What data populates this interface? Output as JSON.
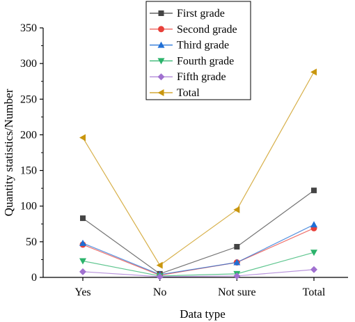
{
  "chart_data": {
    "type": "line",
    "xlabel": "Data type",
    "ylabel": "Quantity statistics/Number",
    "categories": [
      "Yes",
      "No",
      "Not sure",
      "Total"
    ],
    "ylim": [
      0,
      350
    ],
    "yticks": [
      0,
      50,
      100,
      150,
      200,
      250,
      300,
      350
    ],
    "grid": false,
    "legend_position": "top-center",
    "series": [
      {
        "name": "First grade",
        "color": "#444444",
        "marker": "square",
        "values": [
          83,
          5,
          43,
          122
        ]
      },
      {
        "name": "Second grade",
        "color": "#e8403a",
        "marker": "circle",
        "values": [
          46,
          3,
          21,
          69
        ]
      },
      {
        "name": "Third grade",
        "color": "#1f6fd6",
        "marker": "triangle-up",
        "values": [
          48,
          4,
          21,
          74
        ]
      },
      {
        "name": "Fourth grade",
        "color": "#2bb36b",
        "marker": "triangle-down",
        "values": [
          23,
          2,
          5,
          35
        ]
      },
      {
        "name": "Fifth grade",
        "color": "#a070d0",
        "marker": "diamond",
        "values": [
          8,
          1,
          2,
          11
        ]
      },
      {
        "name": "Total",
        "color": "#c9960e",
        "marker": "triangle-left",
        "values": [
          196,
          17,
          95,
          288
        ]
      }
    ]
  }
}
